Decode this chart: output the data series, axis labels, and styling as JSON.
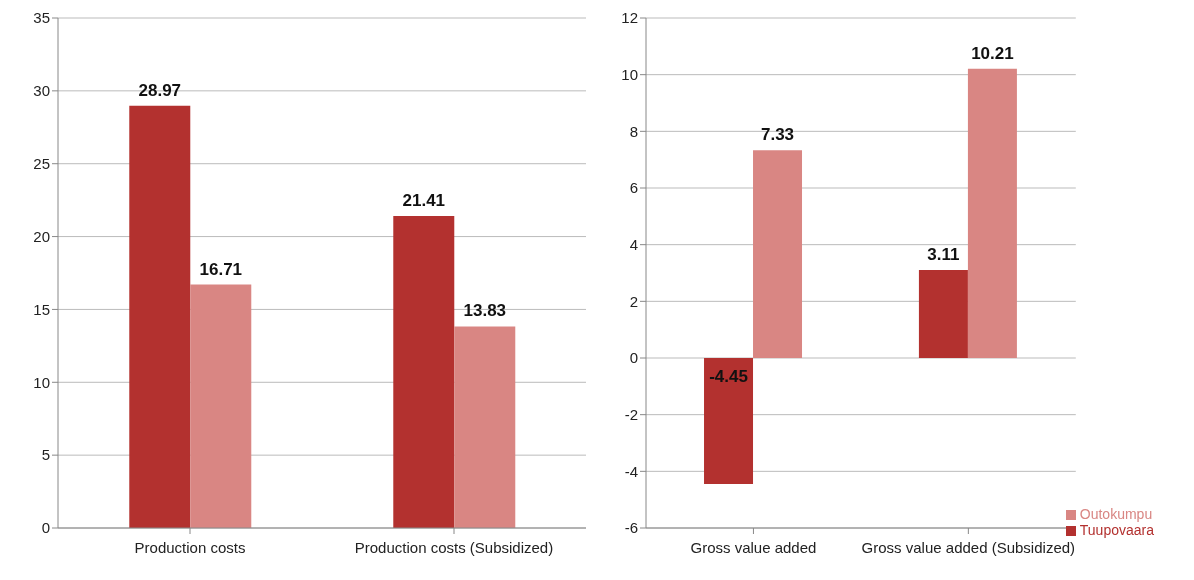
{
  "chart_data": [
    {
      "type": "bar",
      "categories": [
        "Production costs",
        "Production costs (Subsidized)"
      ],
      "series": [
        {
          "color": "#b3312f",
          "values": [
            28.97,
            21.41
          ]
        },
        {
          "color": "#d98683",
          "values": [
            16.71,
            13.83
          ]
        }
      ],
      "ylim": [
        0,
        35
      ],
      "yticks": [
        0,
        5,
        10,
        15,
        20,
        25,
        30,
        35
      ],
      "grid": "y",
      "data_labels": true,
      "legend": false
    },
    {
      "type": "bar",
      "categories": [
        "Gross value added",
        "Gross value added (Subsidized)"
      ],
      "series": [
        {
          "name": "Tuupovaara",
          "color": "#b3312f",
          "values": [
            -4.45,
            3.11
          ]
        },
        {
          "name": "Outokumpu",
          "color": "#d98683",
          "values": [
            7.33,
            10.21
          ]
        }
      ],
      "ylim": [
        -6,
        12
      ],
      "yticks": [
        -6,
        -4,
        -2,
        0,
        2,
        4,
        6,
        8,
        10,
        12
      ],
      "grid": "y",
      "data_labels": true,
      "legend": "bottom right"
    }
  ]
}
